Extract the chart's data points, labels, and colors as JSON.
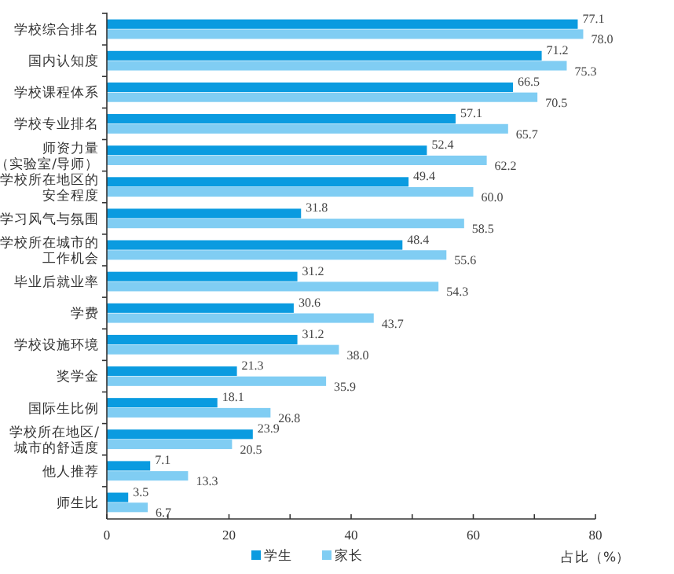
{
  "chart_data": {
    "type": "bar",
    "orientation": "horizontal",
    "xlabel": "占比（%）",
    "categories": [
      "学校综合排名",
      "国内认知度",
      "学校课程体系",
      "学校专业排名",
      "师资力量（实验室/导师）",
      "学校所在地区的安全程度",
      "学习风气与氛围",
      "学校所在城市的工作机会",
      "毕业后就业率",
      "学费",
      "学校设施环境",
      "奖学金",
      "国际生比例",
      "学校所在地区/城市的舒适度",
      "他人推荐",
      "师生比"
    ],
    "series": [
      {
        "name": "学生",
        "color": "#0a9be0",
        "values": [
          77.1,
          71.2,
          66.5,
          57.1,
          52.4,
          49.4,
          31.8,
          48.4,
          31.2,
          30.6,
          31.2,
          21.3,
          18.1,
          23.9,
          7.1,
          3.5
        ],
        "value_labels": [
          "77.1",
          "71.2",
          "66.5",
          "57.1",
          "52.4",
          "49.4",
          "31.8",
          "48.4",
          "31.2",
          "30.6",
          "31.2",
          "21.3",
          "18.1",
          "23.9",
          "7.1",
          "3.5"
        ]
      },
      {
        "name": "家长",
        "color": "#80cdf3",
        "values": [
          78.0,
          75.3,
          70.5,
          65.7,
          62.2,
          60.0,
          58.5,
          55.6,
          54.3,
          43.7,
          38.0,
          35.9,
          26.8,
          20.5,
          13.3,
          6.7
        ],
        "value_labels": [
          "78.0",
          "75.3",
          "70.5",
          "65.7",
          "62.2",
          "60.0",
          "58.5",
          "55.6",
          "54.3",
          "43.7",
          "38.0",
          "35.9",
          "26.8",
          "20.5",
          "13.3",
          "6.7"
        ]
      }
    ],
    "xlim": [
      0,
      80
    ],
    "xticks": [
      0,
      {
        "value": 10,
        "label": null
      },
      20,
      {
        "value": 30,
        "label": null
      },
      40,
      {
        "value": 50,
        "label": null
      },
      60,
      {
        "value": 70,
        "label": null
      },
      80
    ],
    "legend": "bottom",
    "grid": false
  }
}
